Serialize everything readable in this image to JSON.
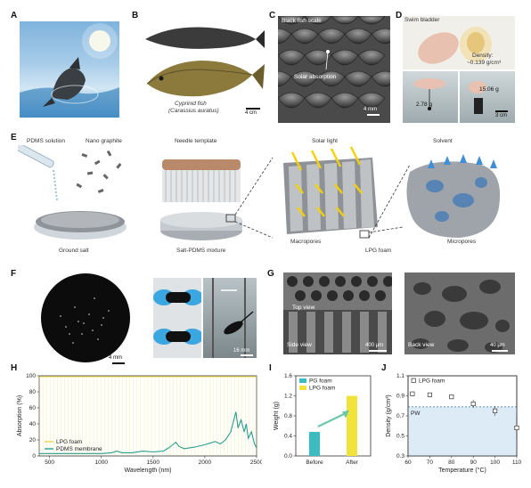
{
  "panels": {
    "A": {
      "letter": "A"
    },
    "B": {
      "letter": "B",
      "species": "Cyprinid fish",
      "latin": "(Carassius auratus)",
      "scale": "4 cm"
    },
    "C": {
      "letter": "C",
      "title": "Black fish scale",
      "annotation": "Solar absorption",
      "scale": "4 mm"
    },
    "D": {
      "letter": "D",
      "title": "Swim bladder",
      "density": "Density:",
      "density_value": "~0.139 g/cm³",
      "mass1": "2.78 g",
      "mass2": "15.06 g",
      "scale": "3 cm"
    },
    "E": {
      "letter": "E",
      "pdms": "PDMS solution",
      "graphite": "Nano graphite",
      "needle": "Needle template",
      "solar": "Solar light",
      "solvent": "Solvent",
      "salt": "Ground salt",
      "mixture": "Salt-PDMS mixture",
      "macropores": "Macropores",
      "lpg": "LPG foam",
      "micropores": "Micropores"
    },
    "F": {
      "letter": "F",
      "scale1": "4 mm",
      "scale2": "16 mm"
    },
    "G": {
      "letter": "G",
      "top": "Top view",
      "side": "Side view",
      "scale1": "400 μm",
      "back": "Back view",
      "scale2": "40 μm"
    }
  },
  "chart_data": [
    {
      "panel": "H",
      "type": "line",
      "xlabel": "Wavelength (nm)",
      "ylabel": "Absorption (%)",
      "xlim": [
        400,
        2500
      ],
      "ylim": [
        0,
        100
      ],
      "xticks": [
        500,
        1000,
        1500,
        2000,
        2500
      ],
      "yticks": [
        0,
        20,
        40,
        60,
        80,
        100
      ],
      "series": [
        {
          "name": "LPG foam",
          "color": "#e8d84a",
          "x": [
            400,
            600,
            800,
            1000,
            1200,
            1400,
            1600,
            1800,
            2000,
            2200,
            2400,
            2500
          ],
          "y": [
            99,
            99,
            99,
            99,
            99,
            99,
            99,
            99,
            99,
            99,
            99,
            99
          ]
        },
        {
          "name": "PDMS membrane",
          "color": "#2a9d8f",
          "x": [
            400,
            600,
            800,
            1000,
            1100,
            1150,
            1200,
            1300,
            1400,
            1500,
            1600,
            1650,
            1700,
            1720,
            1750,
            1800,
            1900,
            2000,
            2100,
            2150,
            2200,
            2250,
            2280,
            2300,
            2320,
            2350,
            2380,
            2400,
            2420,
            2450,
            2480,
            2500
          ],
          "y": [
            3,
            3,
            3,
            3,
            4,
            6,
            4,
            4,
            6,
            5,
            6,
            10,
            15,
            17,
            12,
            9,
            11,
            14,
            18,
            15,
            20,
            30,
            45,
            55,
            35,
            45,
            30,
            40,
            22,
            30,
            15,
            10
          ]
        }
      ]
    },
    {
      "panel": "I",
      "type": "bar",
      "categories": [
        "Before",
        "After"
      ],
      "xlabel": "",
      "ylabel": "Weight (g)",
      "ylim": [
        0,
        1.6
      ],
      "yticks": [
        0,
        0.4,
        0.8,
        1.2,
        1.6
      ],
      "series": [
        {
          "name": "PG foam",
          "color": "#3bbcc1",
          "values": [
            0.48,
            null
          ]
        },
        {
          "name": "LPG foam",
          "color": "#f2e33a",
          "values": [
            null,
            1.2
          ]
        }
      ]
    },
    {
      "panel": "J",
      "type": "scatter",
      "xlabel": "Temperature (°C)",
      "ylabel": "Density (g/cm³)",
      "xlim": [
        60,
        110
      ],
      "ylim": [
        0.3,
        1.1
      ],
      "xticks": [
        60,
        70,
        80,
        90,
        100,
        110
      ],
      "yticks": [
        0.3,
        0.5,
        0.7,
        0.9,
        1.1
      ],
      "reference": {
        "label": "PW",
        "y": 0.79
      },
      "series": [
        {
          "name": "LPG foam",
          "x": [
            62,
            70,
            80,
            90,
            100,
            110
          ],
          "y": [
            0.92,
            0.91,
            0.89,
            0.82,
            0.75,
            0.58
          ],
          "err": [
            0.02,
            0.02,
            0.02,
            0.04,
            0.05,
            0.12
          ]
        }
      ]
    }
  ]
}
